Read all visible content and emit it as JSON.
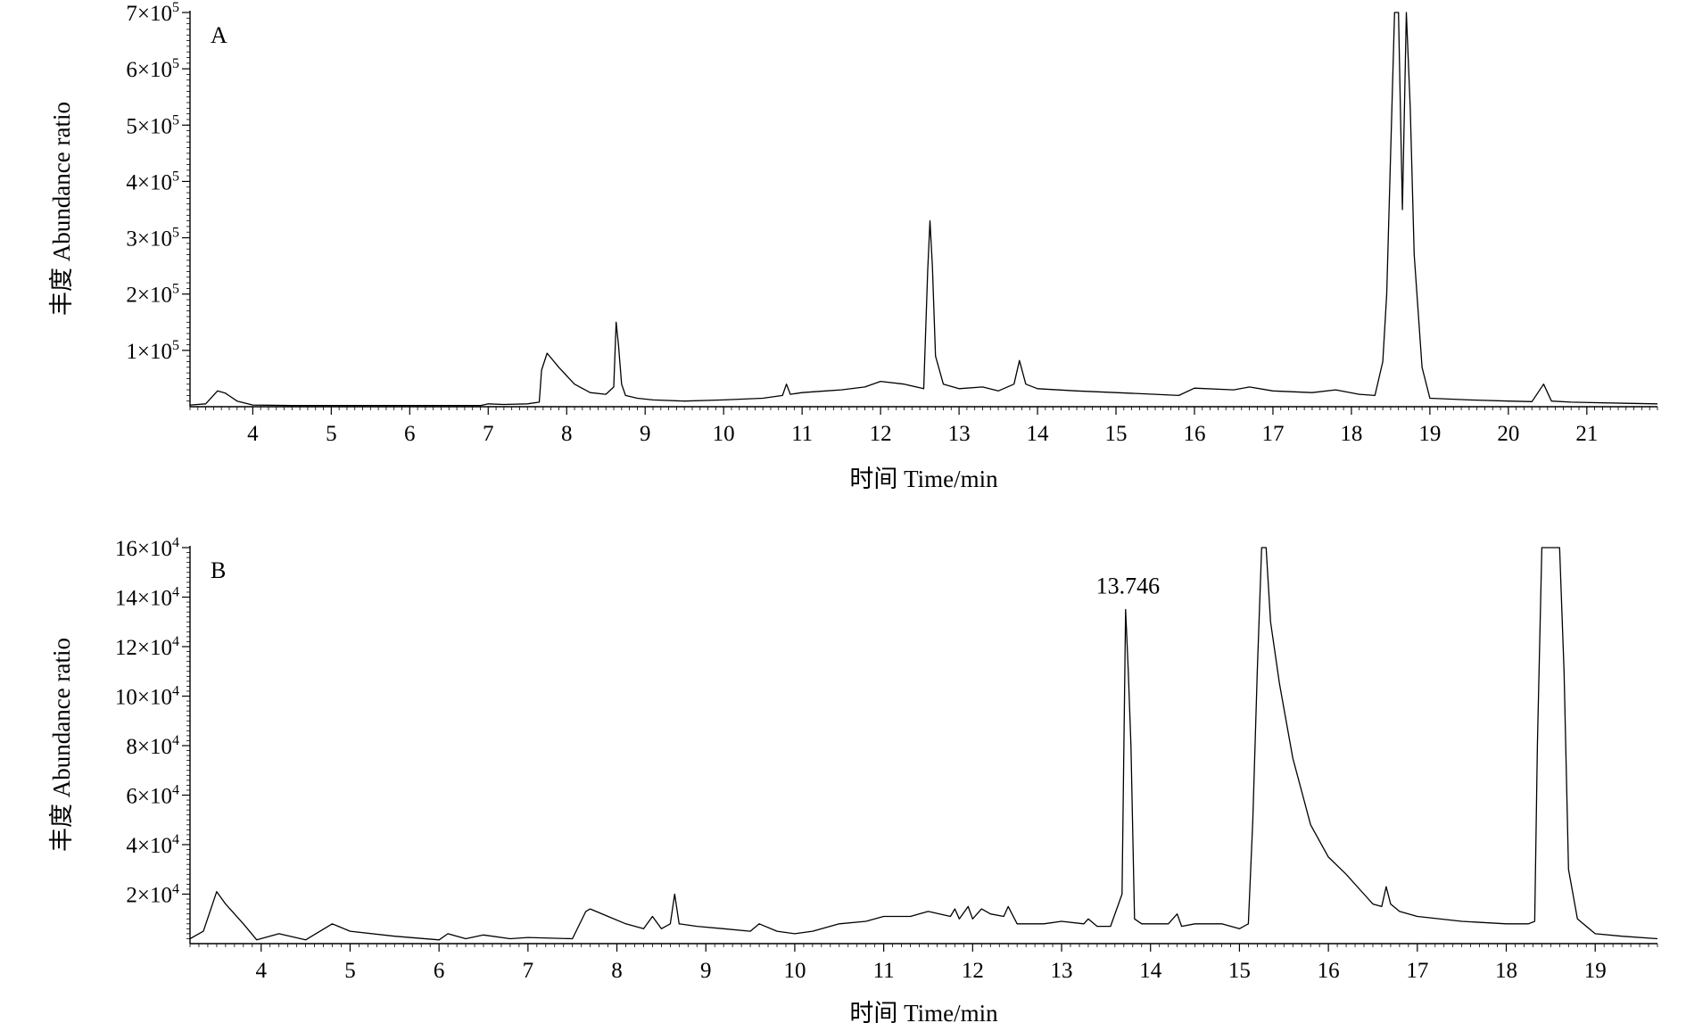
{
  "chart_data": [
    {
      "type": "line",
      "panel_label": "A",
      "xlabel": "时间 Time/min",
      "ylabel": "丰度 Abundance ratio",
      "xlim": [
        3.2,
        21.9
      ],
      "ylim": [
        0,
        700000
      ],
      "x_ticks": [
        4,
        5,
        6,
        7,
        8,
        9,
        10,
        11,
        12,
        13,
        14,
        15,
        16,
        17,
        18,
        19,
        20,
        21
      ],
      "y_ticks": [
        {
          "value": 100000,
          "base": "1×10",
          "exp": "5"
        },
        {
          "value": 200000,
          "base": "2×10",
          "exp": "5"
        },
        {
          "value": 300000,
          "base": "3×10",
          "exp": "5"
        },
        {
          "value": 400000,
          "base": "4×10",
          "exp": "5"
        },
        {
          "value": 500000,
          "base": "5×10",
          "exp": "5"
        },
        {
          "value": 600000,
          "base": "6×10",
          "exp": "5"
        },
        {
          "value": 700000,
          "base": "7×10",
          "exp": "5"
        }
      ],
      "series": [
        {
          "x": [
            3.2,
            3.4,
            3.55,
            3.65,
            3.8,
            4.0,
            4.5,
            5.0,
            5.5,
            6.0,
            6.5,
            6.9,
            7.0,
            7.2,
            7.5,
            7.65,
            7.68,
            7.75,
            7.9,
            8.1,
            8.3,
            8.5,
            8.6,
            8.63,
            8.66,
            8.7,
            8.75,
            8.9,
            9.1,
            9.5,
            10.0,
            10.5,
            10.75,
            10.8,
            10.85,
            11.0,
            11.3,
            11.5,
            11.8,
            12.0,
            12.3,
            12.55,
            12.6,
            12.63,
            12.66,
            12.7,
            12.8,
            13.0,
            13.3,
            13.5,
            13.7,
            13.77,
            13.85,
            14.0,
            14.5,
            15.0,
            15.5,
            15.8,
            16.0,
            16.5,
            16.7,
            17.0,
            17.5,
            17.8,
            18.1,
            18.3,
            18.4,
            18.45,
            18.5,
            18.55,
            18.6,
            18.65,
            18.7,
            18.75,
            18.8,
            18.9,
            19.0,
            19.5,
            20.0,
            20.3,
            20.45,
            20.55,
            20.8,
            21.5,
            21.9
          ],
          "y": [
            3000,
            5000,
            28000,
            24000,
            10000,
            3000,
            2000,
            2000,
            2000,
            2000,
            2000,
            2000,
            5000,
            4000,
            5000,
            8000,
            65000,
            95000,
            70000,
            40000,
            25000,
            22000,
            35000,
            150000,
            110000,
            40000,
            20000,
            15000,
            12000,
            10000,
            12000,
            15000,
            20000,
            40000,
            22000,
            25000,
            28000,
            30000,
            35000,
            45000,
            40000,
            32000,
            240000,
            330000,
            250000,
            90000,
            40000,
            32000,
            35000,
            28000,
            40000,
            82000,
            40000,
            32000,
            28000,
            25000,
            22000,
            20000,
            33000,
            30000,
            35000,
            28000,
            25000,
            30000,
            22000,
            20000,
            80000,
            200000,
            450000,
            700000,
            700000,
            350000,
            700000,
            530000,
            270000,
            70000,
            15000,
            12000,
            10000,
            9000,
            40000,
            10000,
            8000,
            6000,
            5000
          ]
        }
      ]
    },
    {
      "type": "line",
      "panel_label": "B",
      "xlabel": "时间 Time/min",
      "ylabel": "丰度 Abundance ratio",
      "xlim": [
        3.2,
        19.7
      ],
      "ylim": [
        0,
        160000
      ],
      "x_ticks": [
        4,
        5,
        6,
        7,
        8,
        9,
        10,
        11,
        12,
        13,
        14,
        15,
        16,
        17,
        18,
        19
      ],
      "y_ticks": [
        {
          "value": 20000,
          "base": "2×10",
          "exp": "4"
        },
        {
          "value": 40000,
          "base": "4×10",
          "exp": "4"
        },
        {
          "value": 60000,
          "base": "6×10",
          "exp": "4"
        },
        {
          "value": 80000,
          "base": "8×10",
          "exp": "4"
        },
        {
          "value": 100000,
          "base": "10×10",
          "exp": "4"
        },
        {
          "value": 120000,
          "base": "12×10",
          "exp": "4"
        },
        {
          "value": 140000,
          "base": "14×10",
          "exp": "4"
        },
        {
          "value": 160000,
          "base": "16×10",
          "exp": "4"
        }
      ],
      "annotations": [
        {
          "text": "13.746",
          "x": 13.746,
          "y": 135000
        }
      ],
      "series": [
        {
          "x": [
            3.2,
            3.35,
            3.5,
            3.6,
            3.8,
            3.95,
            4.2,
            4.5,
            4.8,
            5.0,
            5.5,
            6.0,
            6.1,
            6.3,
            6.5,
            6.8,
            7.0,
            7.5,
            7.65,
            7.7,
            7.9,
            8.1,
            8.3,
            8.4,
            8.5,
            8.6,
            8.65,
            8.7,
            8.9,
            9.2,
            9.5,
            9.6,
            9.8,
            10.0,
            10.2,
            10.5,
            10.8,
            11.0,
            11.3,
            11.5,
            11.75,
            11.8,
            11.85,
            11.95,
            12.0,
            12.1,
            12.2,
            12.35,
            12.4,
            12.5,
            12.8,
            13.0,
            13.25,
            13.3,
            13.4,
            13.55,
            13.68,
            13.72,
            13.75,
            13.78,
            13.82,
            13.9,
            14.2,
            14.3,
            14.35,
            14.5,
            14.8,
            15.0,
            15.1,
            15.15,
            15.2,
            15.25,
            15.3,
            15.35,
            15.45,
            15.6,
            15.8,
            16.0,
            16.2,
            16.4,
            16.5,
            16.6,
            16.65,
            16.7,
            16.8,
            17.0,
            17.5,
            18.0,
            18.15,
            18.25,
            18.32,
            18.35,
            18.4,
            18.45,
            18.5,
            18.55,
            18.6,
            18.65,
            18.7,
            18.8,
            19.0,
            19.3,
            19.7
          ],
          "y": [
            2000,
            5000,
            21000,
            16000,
            8000,
            1500,
            4000,
            1500,
            8000,
            5000,
            3000,
            1500,
            4000,
            2000,
            3500,
            2000,
            2500,
            2000,
            13000,
            14000,
            11000,
            8000,
            6000,
            11000,
            6000,
            8000,
            20000,
            8000,
            7000,
            6000,
            5000,
            8000,
            5000,
            4000,
            5000,
            8000,
            9000,
            11000,
            11000,
            13000,
            11000,
            14000,
            10000,
            15000,
            10000,
            14000,
            12000,
            11000,
            15000,
            8000,
            8000,
            9000,
            8000,
            10000,
            7000,
            7000,
            20000,
            135000,
            110000,
            80000,
            10000,
            8000,
            8000,
            12000,
            7000,
            8000,
            8000,
            6000,
            8000,
            50000,
            110000,
            160000,
            160000,
            130000,
            105000,
            75000,
            48000,
            35000,
            28000,
            20000,
            16000,
            15000,
            23000,
            16000,
            13000,
            11000,
            9000,
            8000,
            8000,
            8000,
            9000,
            80000,
            160000,
            160000,
            160000,
            160000,
            160000,
            110000,
            30000,
            10000,
            4000,
            3000,
            2000
          ]
        }
      ]
    }
  ]
}
